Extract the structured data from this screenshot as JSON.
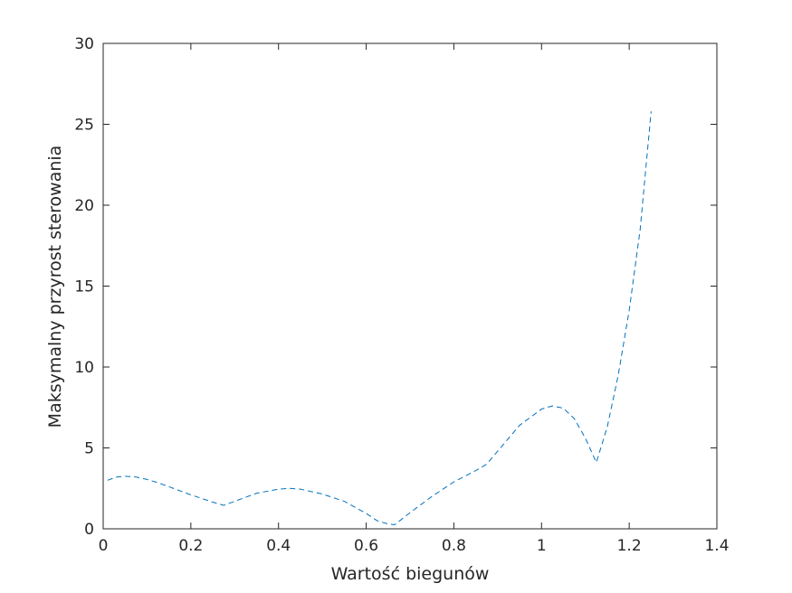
{
  "chart_data": {
    "type": "line",
    "title": "",
    "xlabel": "Wartość biegunów",
    "ylabel": "Maksymalny przyrost sterowania",
    "xlim": [
      0,
      1.4
    ],
    "ylim": [
      0,
      30
    ],
    "xticks": [
      0,
      0.2,
      0.4,
      0.6,
      0.8,
      1,
      1.2,
      1.4
    ],
    "xtick_labels": [
      "0",
      "0.2",
      "0.4",
      "0.6",
      "0.8",
      "1",
      "1.2",
      "1.4"
    ],
    "yticks": [
      0,
      5,
      10,
      15,
      20,
      25,
      30
    ],
    "ytick_labels": [
      "0",
      "5",
      "10",
      "15",
      "20",
      "25",
      "30"
    ],
    "grid": false,
    "box": true,
    "series": [
      {
        "line_style": "dashed",
        "color": "#0072BD",
        "x": [
          0.01,
          0.03,
          0.05,
          0.075,
          0.1,
          0.125,
          0.15,
          0.2,
          0.25,
          0.275,
          0.3,
          0.35,
          0.4,
          0.425,
          0.45,
          0.5,
          0.55,
          0.6,
          0.625,
          0.65,
          0.665,
          0.7,
          0.75,
          0.8,
          0.85,
          0.875,
          0.9,
          0.95,
          1.0,
          1.025,
          1.05,
          1.075,
          1.1,
          1.125,
          1.15,
          1.175,
          1.2,
          1.225,
          1.25
        ],
        "y": [
          3.0,
          3.2,
          3.25,
          3.2,
          3.05,
          2.85,
          2.6,
          2.1,
          1.65,
          1.45,
          1.7,
          2.2,
          2.45,
          2.5,
          2.45,
          2.15,
          1.7,
          0.95,
          0.5,
          0.3,
          0.25,
          1.0,
          2.0,
          2.9,
          3.6,
          4.0,
          4.8,
          6.4,
          7.4,
          7.6,
          7.45,
          6.8,
          5.6,
          4.1,
          6.3,
          9.5,
          13.5,
          18.5,
          25.8
        ]
      }
    ]
  }
}
